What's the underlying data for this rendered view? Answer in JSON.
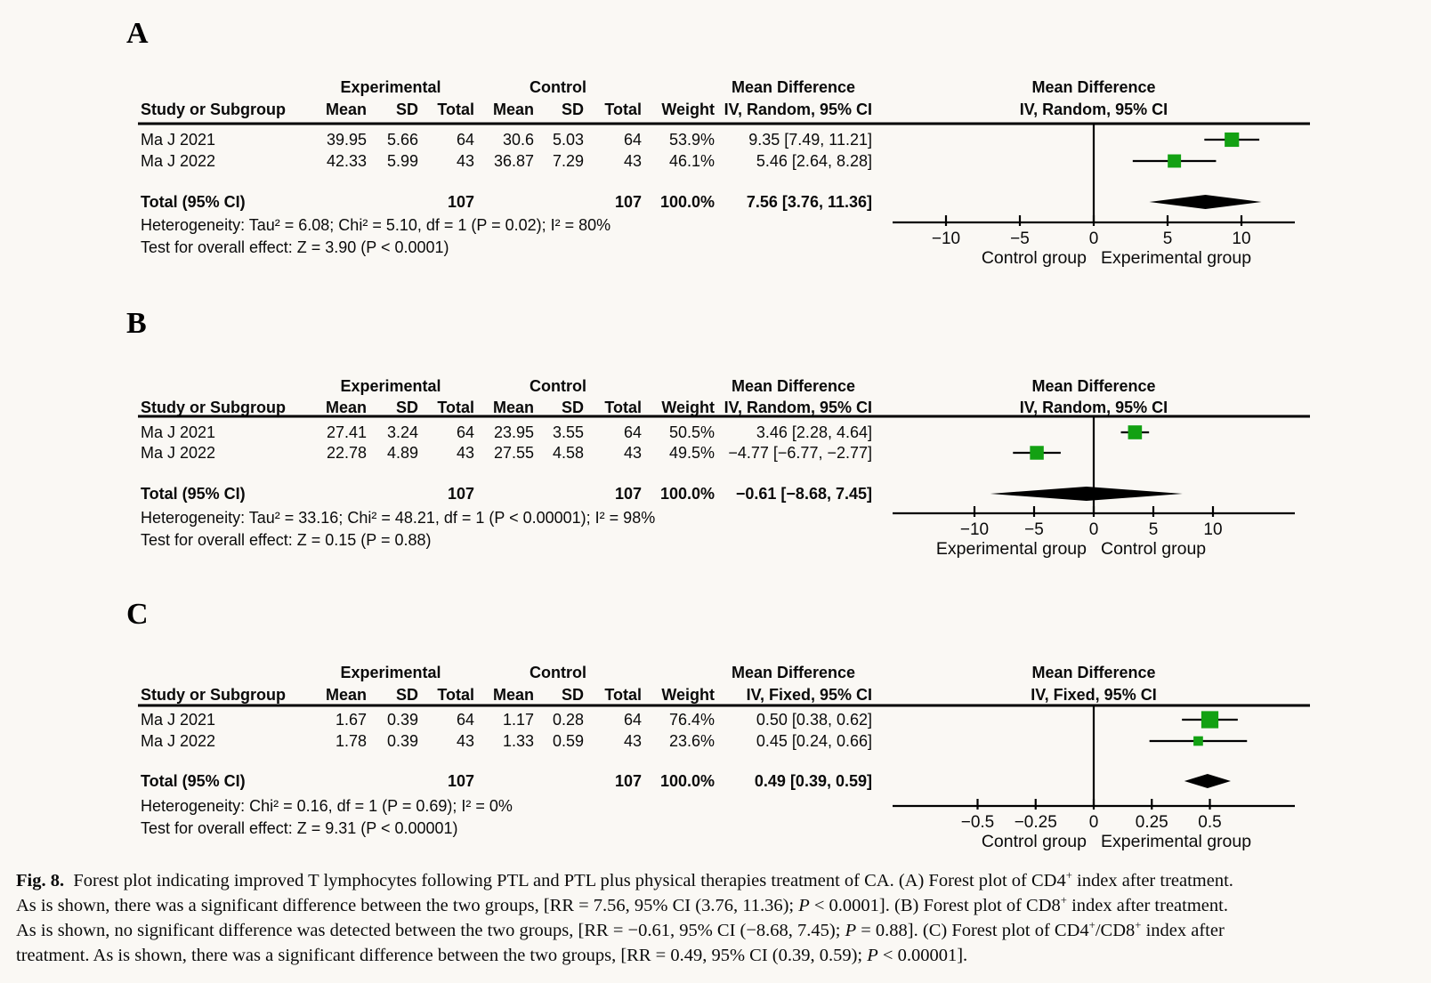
{
  "colors": {
    "marker_green": "#13A113",
    "ink": "#000000",
    "page_bg": "#FAF8F4"
  },
  "chart_data": [
    {
      "type": "forest",
      "panel_label": "A",
      "group_headers": [
        "Experimental",
        "Control",
        "Mean Difference"
      ],
      "columns": [
        "Study or Subgroup",
        "Mean",
        "SD",
        "Total",
        "Mean",
        "SD",
        "Total",
        "Weight",
        "IV, Random, 95% CI"
      ],
      "plot_header": [
        "Mean Difference",
        "IV, Random, 95% CI"
      ],
      "studies": [
        {
          "study": "Ma J 2021",
          "exp_mean": 39.95,
          "exp_sd": 5.66,
          "exp_total": 64,
          "ctl_mean": 30.6,
          "ctl_sd": 5.03,
          "ctl_total": 64,
          "weight": 53.9,
          "md": 9.35,
          "ci_lo": 7.49,
          "ci_hi": 11.21
        },
        {
          "study": "Ma J 2022",
          "exp_mean": 42.33,
          "exp_sd": 5.99,
          "exp_total": 43,
          "ctl_mean": 36.87,
          "ctl_sd": 7.29,
          "ctl_total": 43,
          "weight": 46.1,
          "md": 5.46,
          "ci_lo": 2.64,
          "ci_hi": 8.28
        }
      ],
      "total": {
        "label": "Total (95% CI)",
        "exp_total": 107,
        "ctl_total": 107,
        "weight": 100.0,
        "md": 7.56,
        "ci_lo": 3.76,
        "ci_hi": 11.36
      },
      "heterogeneity": "Heterogeneity: Tau² = 6.08; Chi² = 5.10, df = 1 (P = 0.02); I² = 80%",
      "overall_effect": "Test for overall effect: Z = 3.90 (P < 0.0001)",
      "x_ticks": [
        -10,
        -5,
        0,
        5,
        10
      ],
      "xlim": [
        -13.6,
        13.6
      ],
      "xlabel_left": "Control group",
      "xlabel_right": "Experimental group"
    },
    {
      "type": "forest",
      "panel_label": "B",
      "group_headers": [
        "Experimental",
        "Control",
        "Mean Difference"
      ],
      "columns": [
        "Study or Subgroup",
        "Mean",
        "SD",
        "Total",
        "Mean",
        "SD",
        "Total",
        "Weight",
        "IV, Random, 95% CI"
      ],
      "plot_header": [
        "Mean Difference",
        "IV, Random, 95% CI"
      ],
      "studies": [
        {
          "study": "Ma J 2021",
          "exp_mean": 27.41,
          "exp_sd": 3.24,
          "exp_total": 64,
          "ctl_mean": 23.95,
          "ctl_sd": 3.55,
          "ctl_total": 64,
          "weight": 50.5,
          "md": 3.46,
          "ci_lo": 2.28,
          "ci_hi": 4.64
        },
        {
          "study": "Ma J 2022",
          "exp_mean": 22.78,
          "exp_sd": 4.89,
          "exp_total": 43,
          "ctl_mean": 27.55,
          "ctl_sd": 4.58,
          "ctl_total": 43,
          "weight": 49.5,
          "md": -4.77,
          "ci_lo": -6.77,
          "ci_hi": -2.77
        }
      ],
      "total": {
        "label": "Total (95% CI)",
        "exp_total": 107,
        "ctl_total": 107,
        "weight": 100.0,
        "md": -0.61,
        "ci_lo": -8.68,
        "ci_hi": 7.45
      },
      "heterogeneity": "Heterogeneity: Tau² = 33.16; Chi² = 48.21, df = 1 (P < 0.00001); I² = 98%",
      "overall_effect": "Test for overall effect: Z = 0.15 (P = 0.88)",
      "x_ticks": [
        -10,
        -5,
        0,
        5,
        10
      ],
      "xlim": [
        -16.9,
        16.9
      ],
      "xlabel_left": "Experimental group",
      "xlabel_right": "Control group"
    },
    {
      "type": "forest",
      "panel_label": "C",
      "group_headers": [
        "Experimental",
        "Control",
        "Mean Difference"
      ],
      "columns": [
        "Study or Subgroup",
        "Mean",
        "SD",
        "Total",
        "Mean",
        "SD",
        "Total",
        "Weight",
        "IV, Fixed, 95% CI"
      ],
      "plot_header": [
        "Mean Difference",
        "IV, Fixed, 95% CI"
      ],
      "studies": [
        {
          "study": "Ma J 2021",
          "exp_mean": 1.67,
          "exp_sd": 0.39,
          "exp_total": 64,
          "ctl_mean": 1.17,
          "ctl_sd": 0.28,
          "ctl_total": 64,
          "weight": 76.4,
          "md": 0.5,
          "ci_lo": 0.38,
          "ci_hi": 0.62
        },
        {
          "study": "Ma J 2022",
          "exp_mean": 1.78,
          "exp_sd": 0.39,
          "exp_total": 43,
          "ctl_mean": 1.33,
          "ctl_sd": 0.59,
          "ctl_total": 43,
          "weight": 23.6,
          "md": 0.45,
          "ci_lo": 0.24,
          "ci_hi": 0.66
        }
      ],
      "total": {
        "label": "Total (95% CI)",
        "exp_total": 107,
        "ctl_total": 107,
        "weight": 100.0,
        "md": 0.49,
        "ci_lo": 0.39,
        "ci_hi": 0.59
      },
      "heterogeneity": "Heterogeneity: Chi² = 0.16, df = 1 (P = 0.69); I² = 0%",
      "overall_effect": "Test for overall effect: Z = 9.31 (P < 0.00001)",
      "x_ticks": [
        -0.5,
        -0.25,
        0,
        0.25,
        0.5
      ],
      "xlim": [
        -0.87,
        0.87
      ],
      "xlabel_left": "Control group",
      "xlabel_right": "Experimental group"
    }
  ],
  "caption": {
    "lines": [
      [
        {
          "t": "Fig. 8.",
          "b": 1
        },
        {
          "t": "  Forest plot indicating improved T lymphocytes following PTL and PTL plus physical therapies treatment of CA. (A) Forest plot of CD4"
        },
        {
          "t": "+",
          "sup": 1
        },
        {
          "t": " index after treatment."
        }
      ],
      [
        {
          "t": "As is shown, there was a significant difference between the two groups, [RR = 7.56, 95% CI (3.76, 11.36); "
        },
        {
          "t": "P",
          "i": 1
        },
        {
          "t": " < 0.0001]. (B) Forest plot of CD8"
        },
        {
          "t": "+",
          "sup": 1
        },
        {
          "t": " index after treatment."
        }
      ],
      [
        {
          "t": "As is shown, no significant difference was detected between the two groups, [RR = −0.61, 95% CI (−8.68, 7.45); "
        },
        {
          "t": "P",
          "i": 1
        },
        {
          "t": " = 0.88]. (C) Forest plot of CD4"
        },
        {
          "t": "+",
          "sup": 1
        },
        {
          "t": "/CD8"
        },
        {
          "t": "+",
          "sup": 1
        },
        {
          "t": " index after"
        }
      ],
      [
        {
          "t": "treatment. As is shown, there was a significant difference between the two groups, [RR = 0.49, 95% CI (0.39, 0.59); "
        },
        {
          "t": "P",
          "i": 1
        },
        {
          "t": " < 0.00001]."
        }
      ]
    ]
  }
}
